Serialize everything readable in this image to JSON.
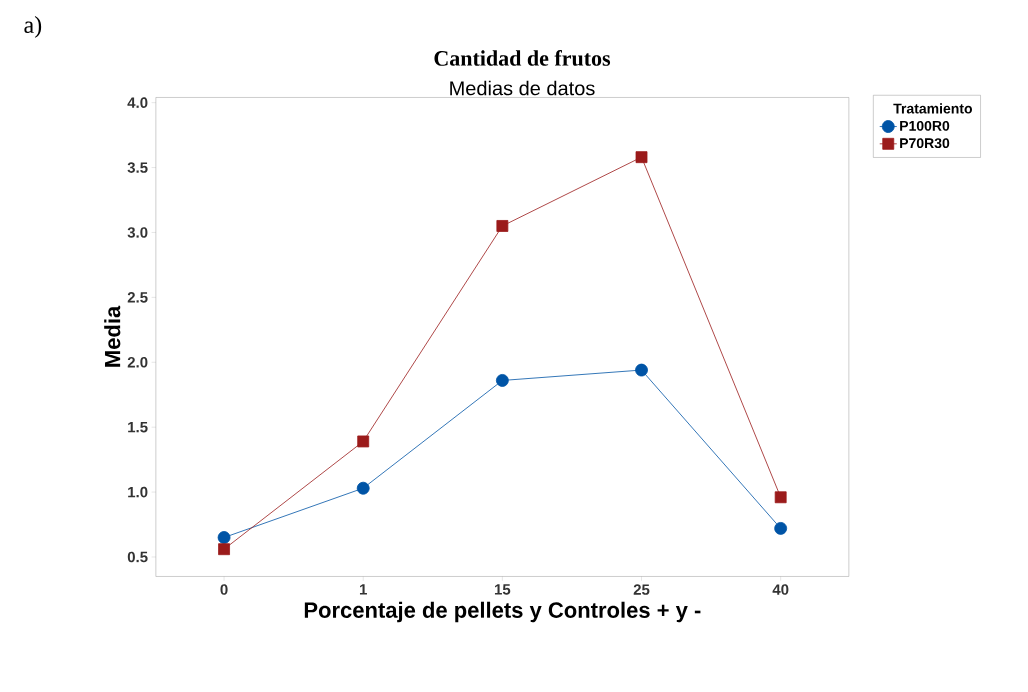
{
  "chart_data": {
    "type": "line",
    "title": "Cantidad de frutos",
    "subtitle": "Medias de datos",
    "xlabel": "Porcentaje de pellets y Controles + y -",
    "ylabel": "Media",
    "legend_title": "Tratamiento",
    "annotations": [
      "a)"
    ],
    "categories": [
      "0",
      "1",
      "15",
      "25",
      "40"
    ],
    "series": [
      {
        "name": "P100R0",
        "color": "#0054a6",
        "marker": "circle",
        "values": [
          0.65,
          1.03,
          1.86,
          1.94,
          0.72
        ]
      },
      {
        "name": "P70R30",
        "color": "#9b1b1b",
        "marker": "square",
        "values": [
          0.56,
          1.39,
          3.05,
          3.58,
          0.96
        ]
      }
    ],
    "ylim": [
      0.35,
      4.04
    ],
    "yticks": [
      {
        "value": 0.5,
        "label": "0.5"
      },
      {
        "value": 1,
        "label": "1.0"
      },
      {
        "value": 1.5,
        "label": "1.5"
      },
      {
        "value": 2,
        "label": "2.0"
      },
      {
        "value": 2.5,
        "label": "2.5"
      },
      {
        "value": 3,
        "label": "3.0"
      },
      {
        "value": 3.5,
        "label": "3.5"
      },
      {
        "value": 4,
        "label": "4.0"
      }
    ],
    "grid": false,
    "legend": "right",
    "line_style": "solid"
  }
}
